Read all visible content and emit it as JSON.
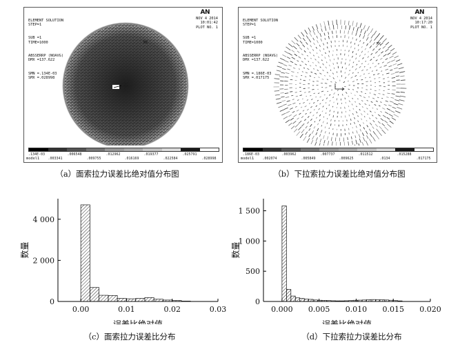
{
  "ansys_panels": [
    {
      "header_lines": [
        "ELEMENT SOLUTION",
        "STEP=1",
        "SUB =1",
        "TIME=1000",
        "ABSSERRP (NOAVG)",
        "DMX =137.622",
        "SMN =.134E-03",
        "SMX =.028998"
      ],
      "logo": "AN",
      "date_lines": [
        "NOV  4 2014",
        "10:01:42",
        "PLOT NO.   1"
      ],
      "mx_label": "MX",
      "model_label": "model1",
      "legend_labels_top": [
        ".134E-03",
        ".006548",
        ".012962",
        ".019377",
        ".025791"
      ],
      "legend_labels_bottom": [
        ".003341",
        ".009755",
        ".016169",
        ".022584",
        ".028998"
      ],
      "legend_colors": [
        "#000000",
        "#333333",
        "#555555",
        "#777777",
        "#999999",
        "#aaaaaa",
        "#c4c4c4",
        "#dddddd",
        "#1a1a1a",
        "#ffffff"
      ],
      "caption": "（a）面索拉力误差比绝对值分布图"
    },
    {
      "header_lines": [
        "ELEMENT SOLUTION",
        "STEP=1",
        "SUB =1",
        "TIME=1000",
        "ABSSERRP (NOAVG)",
        "DMX =137.622",
        "SMN =.186E-03",
        "SMX =.017175"
      ],
      "logo": "AN",
      "date_lines": [
        "NOV  4 2014",
        "10:17:20",
        "PLOT NO.   1"
      ],
      "mx_label": "MX",
      "model_label": "model1",
      "legend_labels_top": [
        ".186E-03",
        ".003962",
        ".007737",
        ".011512",
        ".015288"
      ],
      "legend_labels_bottom": [
        ".002074",
        ".005849",
        ".009625",
        ".0134",
        ".017175"
      ],
      "legend_colors": [
        "#000000",
        "#333333",
        "#555555",
        "#777777",
        "#999999",
        "#aaaaaa",
        "#c4c4c4",
        "#dddddd",
        "#1a1a1a",
        "#ffffff"
      ],
      "caption": "（b）下拉索拉力误差比绝对值分布图"
    }
  ],
  "chart_data": [
    {
      "type": "bar",
      "title": "",
      "caption": "（c）面索拉力误差比分布",
      "xlabel": "误差比绝对值",
      "ylabel": "数量",
      "xlim": [
        -0.005,
        0.03
      ],
      "ylim": [
        0,
        5000
      ],
      "xticks": [
        0,
        0.01,
        0.02,
        0.03
      ],
      "xtick_labels": [
        "0.00",
        "0.01",
        "0.02",
        "0.03"
      ],
      "yticks": [
        0,
        2000,
        4000
      ],
      "ytick_labels": [
        "0",
        "2 000",
        "4 000"
      ],
      "bin_width": 0.002,
      "bin_starts": [
        0.0,
        0.002,
        0.004,
        0.006,
        0.008,
        0.01,
        0.012,
        0.014,
        0.016,
        0.018,
        0.02,
        0.022
      ],
      "values": [
        4700,
        680,
        300,
        290,
        150,
        130,
        150,
        190,
        110,
        70,
        50,
        20
      ],
      "grid": false
    },
    {
      "type": "bar",
      "title": "",
      "caption": "（d）下拉索拉力误差比分布",
      "xlabel": "误差比绝对值",
      "ylabel": "数量",
      "xlim": [
        -0.0025,
        0.02
      ],
      "ylim": [
        0,
        1700
      ],
      "xticks": [
        0,
        0.005,
        0.01,
        0.015,
        0.02
      ],
      "xtick_labels": [
        "0.000",
        "0.005",
        "0.010",
        "0.015",
        "0.020"
      ],
      "yticks": [
        0,
        500,
        1000,
        1500
      ],
      "ytick_labels": [
        "0",
        "500",
        "1 000",
        "1 500"
      ],
      "bin_width": 0.0006,
      "bin_starts": [
        0.0,
        0.0006,
        0.0012,
        0.0018,
        0.0024,
        0.003,
        0.0036,
        0.0042,
        0.0048,
        0.0054,
        0.006,
        0.0066,
        0.0072,
        0.0078,
        0.0084,
        0.009,
        0.0096,
        0.0102,
        0.0108,
        0.0114,
        0.012,
        0.0126,
        0.0132,
        0.0138,
        0.0144,
        0.015,
        0.0156
      ],
      "values": [
        1580,
        200,
        90,
        60,
        50,
        40,
        35,
        25,
        20,
        18,
        15,
        12,
        10,
        10,
        12,
        15,
        20,
        22,
        25,
        30,
        32,
        30,
        28,
        25,
        20,
        15,
        10
      ],
      "grid": false
    }
  ]
}
